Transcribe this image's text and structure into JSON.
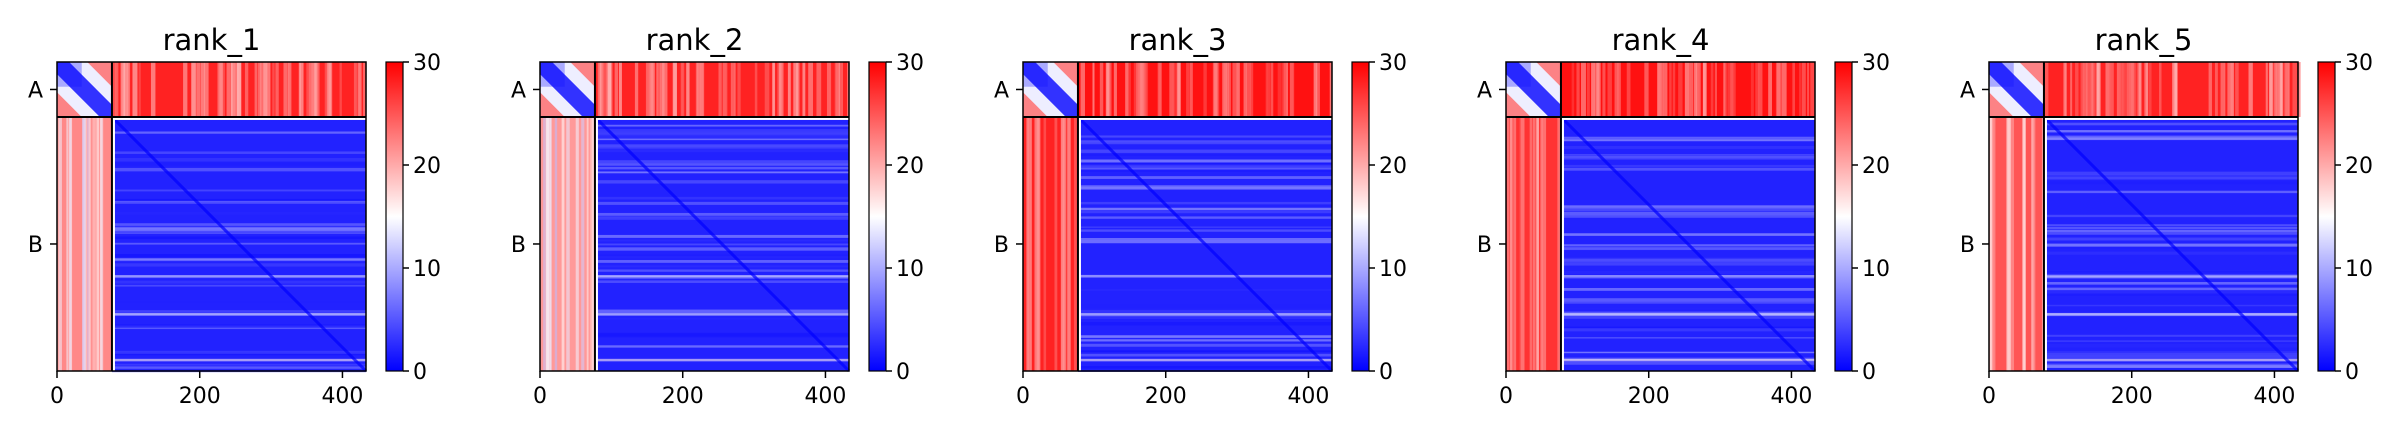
{
  "figure": {
    "colors": {
      "low": "#0000ff",
      "mid": "#ffffff",
      "high": "#ff0000",
      "divider": "#000000"
    },
    "colormap": "bwr"
  },
  "chart_data": [
    {
      "type": "heatmap",
      "title": "rank_1",
      "chains": [
        {
          "name": "A",
          "start": 0,
          "end": 77
        },
        {
          "name": "B",
          "start": 77,
          "end": 433
        }
      ],
      "total_length": 433,
      "xticks": [
        0,
        200,
        400
      ],
      "xlim": [
        0,
        433
      ],
      "colorbar": {
        "min": 0,
        "max": 30,
        "ticks": [
          0,
          10,
          20,
          30
        ]
      },
      "mean_values": {
        "A_A": 8,
        "A_B": 28,
        "B_A": 22,
        "B_B": 2
      }
    },
    {
      "type": "heatmap",
      "title": "rank_2",
      "chains": [
        {
          "name": "A",
          "start": 0,
          "end": 77
        },
        {
          "name": "B",
          "start": 77,
          "end": 433
        }
      ],
      "total_length": 433,
      "xticks": [
        0,
        200,
        400
      ],
      "xlim": [
        0,
        433
      ],
      "colorbar": {
        "min": 0,
        "max": 30,
        "ticks": [
          0,
          10,
          20,
          30
        ]
      },
      "mean_values": {
        "A_A": 8,
        "A_B": 28,
        "B_A": 21,
        "B_B": 2
      }
    },
    {
      "type": "heatmap",
      "title": "rank_3",
      "chains": [
        {
          "name": "A",
          "start": 0,
          "end": 77
        },
        {
          "name": "B",
          "start": 77,
          "end": 433
        }
      ],
      "total_length": 433,
      "xticks": [
        0,
        200,
        400
      ],
      "xlim": [
        0,
        433
      ],
      "colorbar": {
        "min": 0,
        "max": 30,
        "ticks": [
          0,
          10,
          20,
          30
        ]
      },
      "mean_values": {
        "A_A": 8,
        "A_B": 29,
        "B_A": 28,
        "B_B": 2
      }
    },
    {
      "type": "heatmap",
      "title": "rank_4",
      "chains": [
        {
          "name": "A",
          "start": 0,
          "end": 77
        },
        {
          "name": "B",
          "start": 77,
          "end": 433
        }
      ],
      "total_length": 433,
      "xticks": [
        0,
        200,
        400
      ],
      "xlim": [
        0,
        433
      ],
      "colorbar": {
        "min": 0,
        "max": 30,
        "ticks": [
          0,
          10,
          20,
          30
        ]
      },
      "mean_values": {
        "A_A": 8,
        "A_B": 29,
        "B_A": 27,
        "B_B": 2
      }
    },
    {
      "type": "heatmap",
      "title": "rank_5",
      "chains": [
        {
          "name": "A",
          "start": 0,
          "end": 77
        },
        {
          "name": "B",
          "start": 77,
          "end": 433
        }
      ],
      "total_length": 433,
      "xticks": [
        0,
        200,
        400
      ],
      "xlim": [
        0,
        433
      ],
      "colorbar": {
        "min": 0,
        "max": 30,
        "ticks": [
          0,
          10,
          20,
          30
        ]
      },
      "mean_values": {
        "A_A": 8,
        "A_B": 28,
        "B_A": 25,
        "B_B": 2
      }
    }
  ]
}
